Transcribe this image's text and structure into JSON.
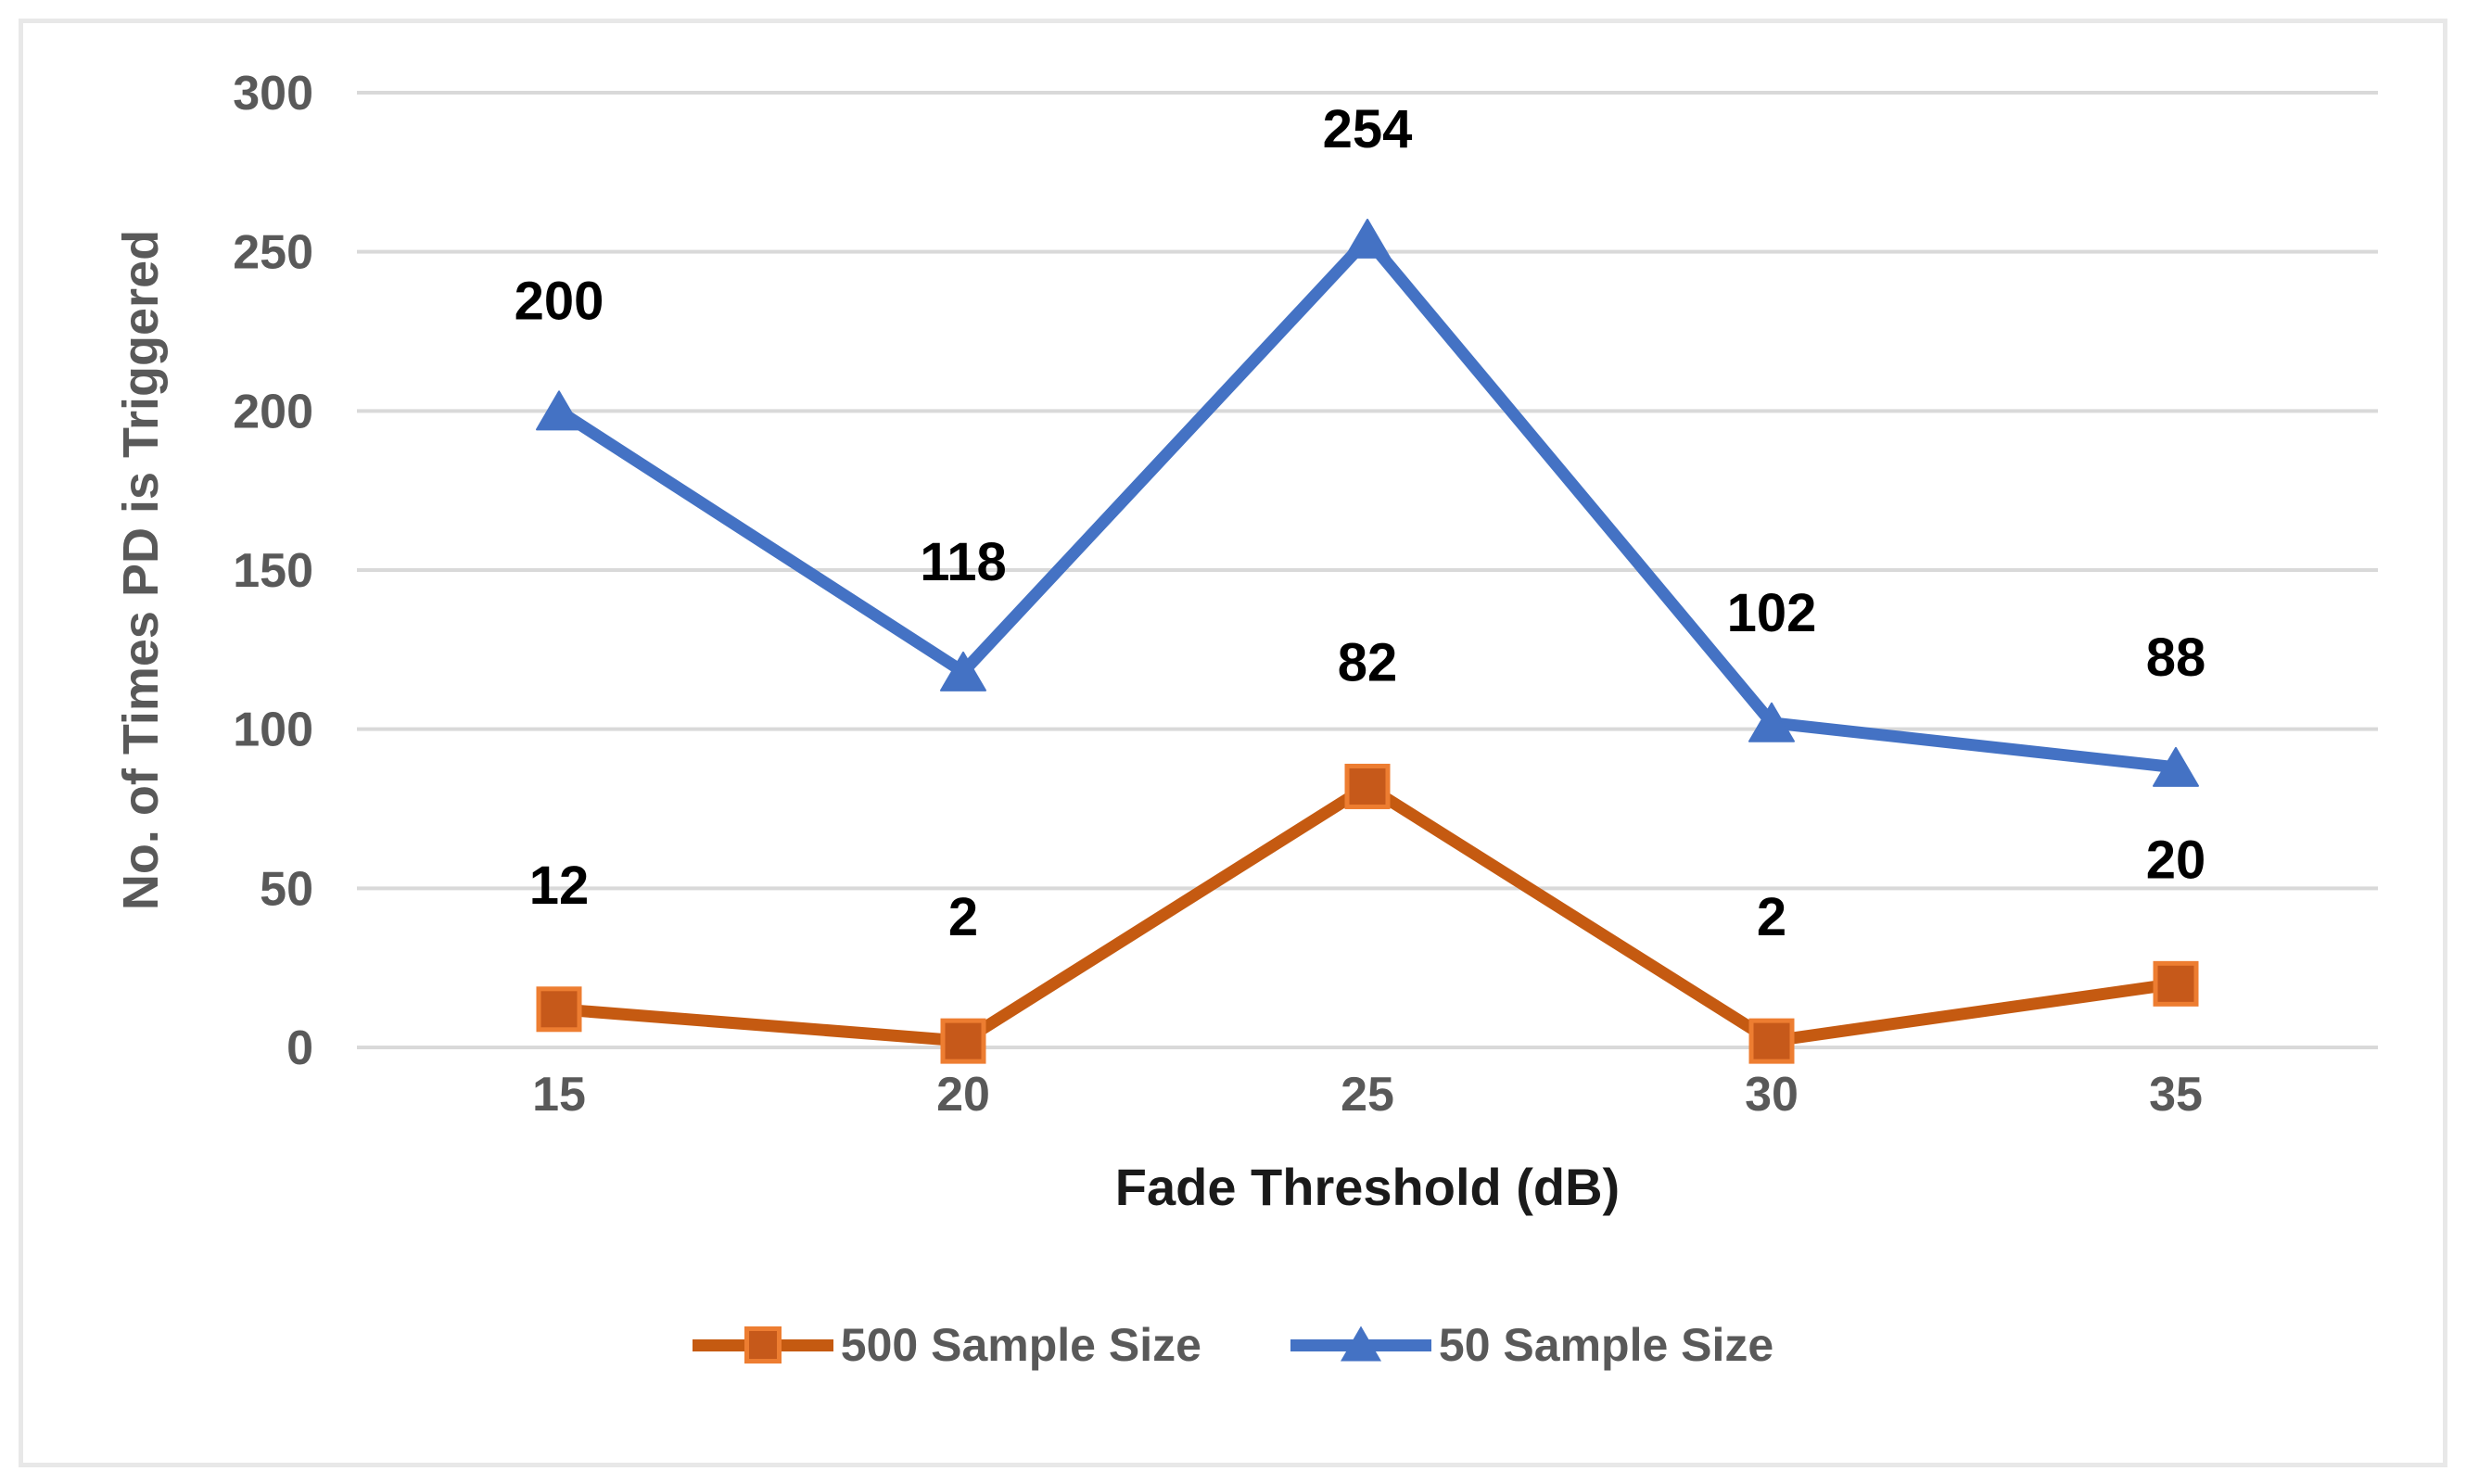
{
  "chart_data": {
    "type": "line",
    "categories": [
      "15",
      "20",
      "25",
      "30",
      "35"
    ],
    "series": [
      {
        "name": "500 Sample Size",
        "values": [
          12,
          2,
          82,
          2,
          20
        ],
        "line_color": "#C55A11",
        "marker": "square",
        "marker_fill": "#C6591A",
        "marker_stroke": "#ED7D31"
      },
      {
        "name": "50 Sample Size",
        "values": [
          200,
          118,
          254,
          102,
          88
        ],
        "line_color": "#4472C4",
        "marker": "triangle",
        "marker_fill": "#4472C4",
        "marker_stroke": "#4472C4"
      }
    ],
    "title": "",
    "xlabel": "Fade Threshold (dB)",
    "ylabel": "No. of Times PD is Triggered",
    "ylim": [
      0,
      300
    ],
    "yticks": [
      0,
      50,
      100,
      150,
      200,
      250,
      300
    ],
    "grid": "horizontal",
    "gridline_color": "#D9D9D9",
    "tick_label_color": "#595959",
    "data_label_color": "#000000",
    "legend_position": "bottom",
    "data_labels_visible": true
  }
}
